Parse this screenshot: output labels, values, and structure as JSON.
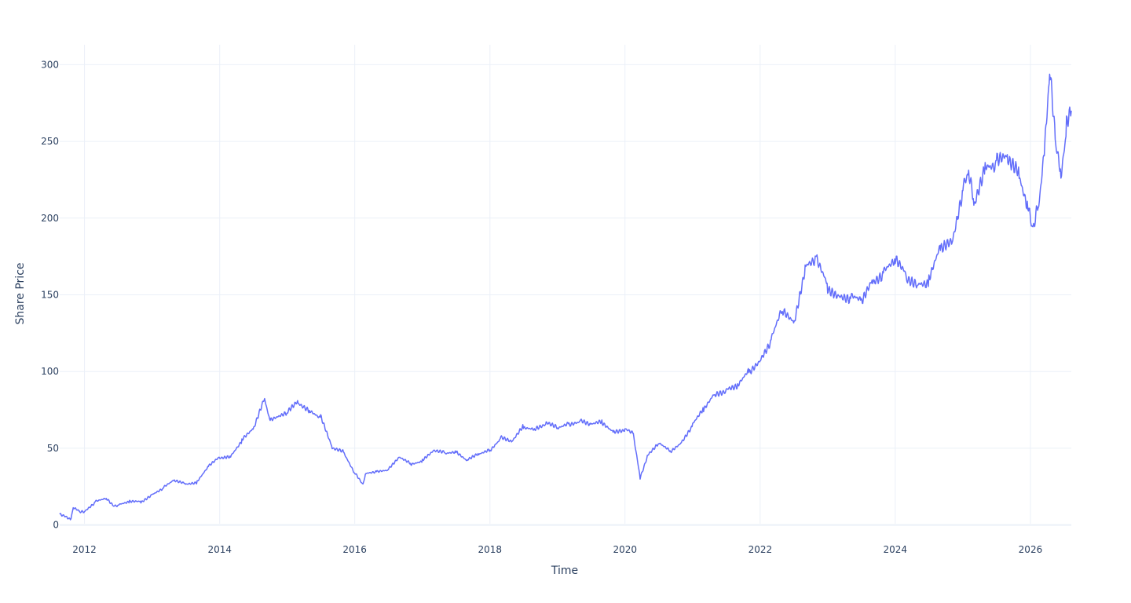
{
  "chart_data": {
    "type": "line",
    "title": "",
    "xlabel": "Time",
    "ylabel": "Share Price",
    "x_range": [
      "2011-08-20",
      "2026-08-10"
    ],
    "ylim": [
      -13,
      313
    ],
    "x_ticks": [
      "2012",
      "2014",
      "2016",
      "2018",
      "2020",
      "2022",
      "2024",
      "2026"
    ],
    "y_ticks": [
      0,
      50,
      100,
      150,
      200,
      250,
      300
    ],
    "grid": true,
    "legend": "none",
    "line_color": "#636efa",
    "grid_color": "#ebf0f8",
    "axis_text_color": "#2a3f5f",
    "series": [
      {
        "x": [
          "2011-08-20",
          "2011-10-01",
          "2011-10-20",
          "2011-11-01",
          "2011-12-01",
          "2012-01-01",
          "2012-03-01",
          "2012-05-01",
          "2012-06-01",
          "2012-07-01",
          "2012-09-01",
          "2012-11-01",
          "2013-01-01",
          "2013-03-01",
          "2013-05-01",
          "2013-07-01",
          "2013-09-01",
          "2013-11-01",
          "2014-01-01",
          "2014-03-01",
          "2014-05-01",
          "2014-07-01",
          "2014-09-01",
          "2014-10-01",
          "2015-01-01",
          "2015-03-01",
          "2015-05-01",
          "2015-07-01",
          "2015-09-01",
          "2015-11-01",
          "2016-01-01",
          "2016-02-15",
          "2016-03-01",
          "2016-05-01",
          "2016-07-01",
          "2016-09-01",
          "2016-11-01",
          "2017-01-01",
          "2017-03-01",
          "2017-05-01",
          "2017-07-01",
          "2017-09-01",
          "2017-11-01",
          "2018-01-01",
          "2018-03-01",
          "2018-05-01",
          "2018-07-01",
          "2018-09-01",
          "2018-11-01",
          "2019-01-01",
          "2019-03-01",
          "2019-05-01",
          "2019-07-01",
          "2019-09-01",
          "2019-11-01",
          "2020-01-01",
          "2020-02-15",
          "2020-03-23",
          "2020-05-01",
          "2020-07-01",
          "2020-09-01",
          "2020-11-01",
          "2021-01-01",
          "2021-03-01",
          "2021-05-01",
          "2021-07-01",
          "2021-09-01",
          "2021-11-01",
          "2022-01-01",
          "2022-03-01",
          "2022-05-01",
          "2022-07-01",
          "2022-09-01",
          "2022-11-01",
          "2023-01-01",
          "2023-03-01",
          "2023-05-01",
          "2023-07-01",
          "2023-09-01",
          "2023-11-01",
          "2024-01-01",
          "2024-03-01",
          "2024-05-01",
          "2024-07-01",
          "2024-09-01",
          "2024-11-01",
          "2025-01-01",
          "2025-02-01",
          "2025-03-01",
          "2025-05-01",
          "2025-07-01",
          "2025-09-01",
          "2025-11-01",
          "2025-12-15",
          "2026-01-15",
          "2026-02-15",
          "2026-03-20",
          "2026-04-15",
          "2026-05-15",
          "2026-06-15",
          "2026-07-15",
          "2026-08-10"
        ],
        "y": [
          7,
          5,
          4,
          11,
          9,
          9,
          15,
          17,
          13,
          13,
          15,
          15,
          20,
          24,
          29,
          27,
          28,
          38,
          44,
          45,
          55,
          62,
          83,
          68,
          73,
          80,
          75,
          70,
          50,
          48,
          34,
          26,
          34,
          35,
          36,
          44,
          40,
          42,
          48,
          47,
          48,
          42,
          46,
          49,
          57,
          54,
          64,
          63,
          66,
          63,
          66,
          68,
          65,
          67,
          61,
          62,
          59,
          31,
          45,
          53,
          48,
          54,
          65,
          75,
          86,
          88,
          90,
          100,
          108,
          120,
          140,
          132,
          168,
          172,
          155,
          150,
          148,
          145,
          160,
          165,
          172,
          162,
          158,
          158,
          180,
          185,
          220,
          228,
          210,
          235,
          235,
          238,
          230,
          210,
          190,
          210,
          250,
          295,
          250,
          230,
          260,
          270
        ]
      }
    ]
  }
}
